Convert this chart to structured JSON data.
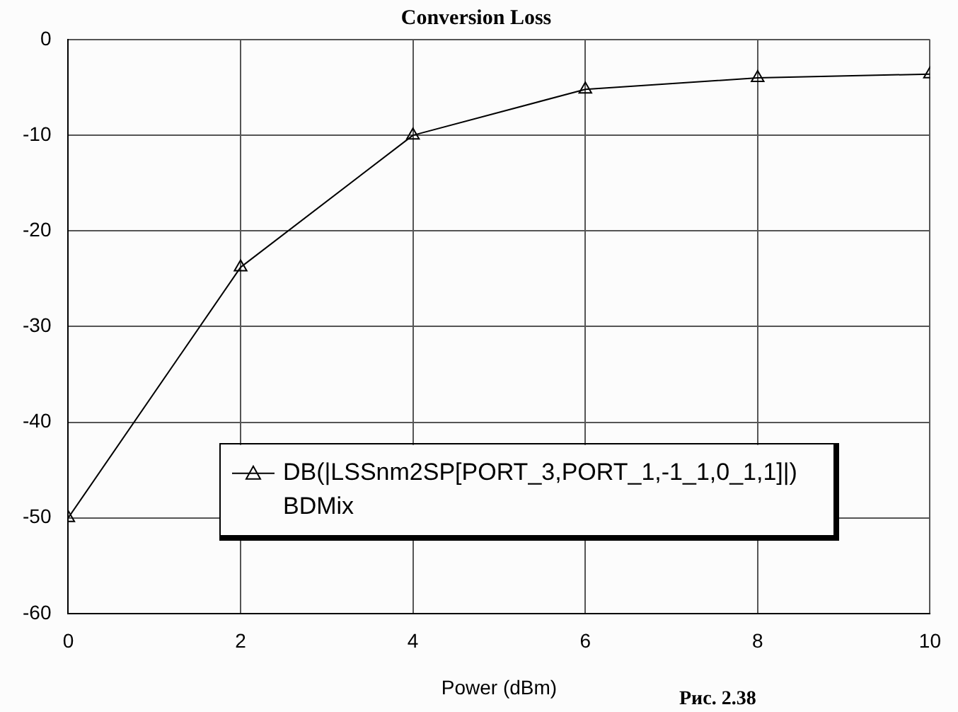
{
  "chart_data": {
    "type": "line",
    "title": "Conversion Loss",
    "xlabel": "Power (dBm)",
    "x": [
      0,
      2,
      4,
      6,
      8,
      10
    ],
    "series": [
      {
        "name": "DB(|LSSnm2SP[PORT_3,PORT_1,-1_1,0_1,1]|)\nBDMix",
        "color": "#000000",
        "values": [
          -50,
          -23.8,
          -10,
          -5.2,
          -4,
          -3.6
        ]
      }
    ],
    "xlim": [
      0,
      10
    ],
    "xticks": [
      0,
      2,
      4,
      6,
      8,
      10
    ],
    "ylim": [
      -60,
      0
    ],
    "yticks": [
      -60,
      -50,
      -40,
      -30,
      -20,
      -10,
      0
    ],
    "grid": true,
    "legend": "bottom",
    "marker": "triangle",
    "line_style": "solid",
    "annotations": [
      "Рис. 2.38"
    ]
  }
}
